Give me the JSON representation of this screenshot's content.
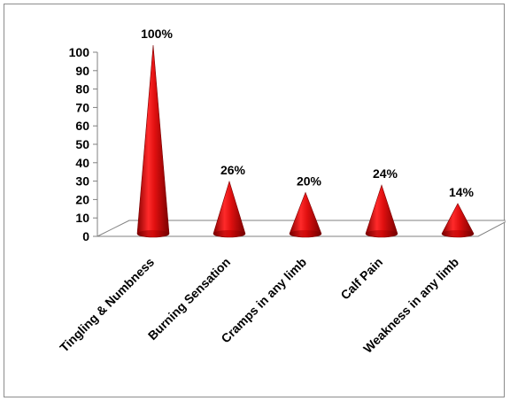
{
  "chart_data": {
    "type": "bar",
    "style": "3d-cone",
    "categories": [
      "Tingling & Numbness",
      "Burning Sensation",
      "Cramps in any limb",
      "Calf Pain",
      "Weakness in any limb"
    ],
    "values": [
      100,
      26,
      20,
      24,
      14
    ],
    "data_labels": [
      "100%",
      "26%",
      "20%",
      "24%",
      "14%"
    ],
    "yticks": [
      "0",
      "10",
      "20",
      "30",
      "40",
      "50",
      "60",
      "70",
      "80",
      "90",
      "100"
    ],
    "ylim": [
      0,
      100
    ],
    "grid": false,
    "legend": "none",
    "bar_color": "#e01010"
  }
}
